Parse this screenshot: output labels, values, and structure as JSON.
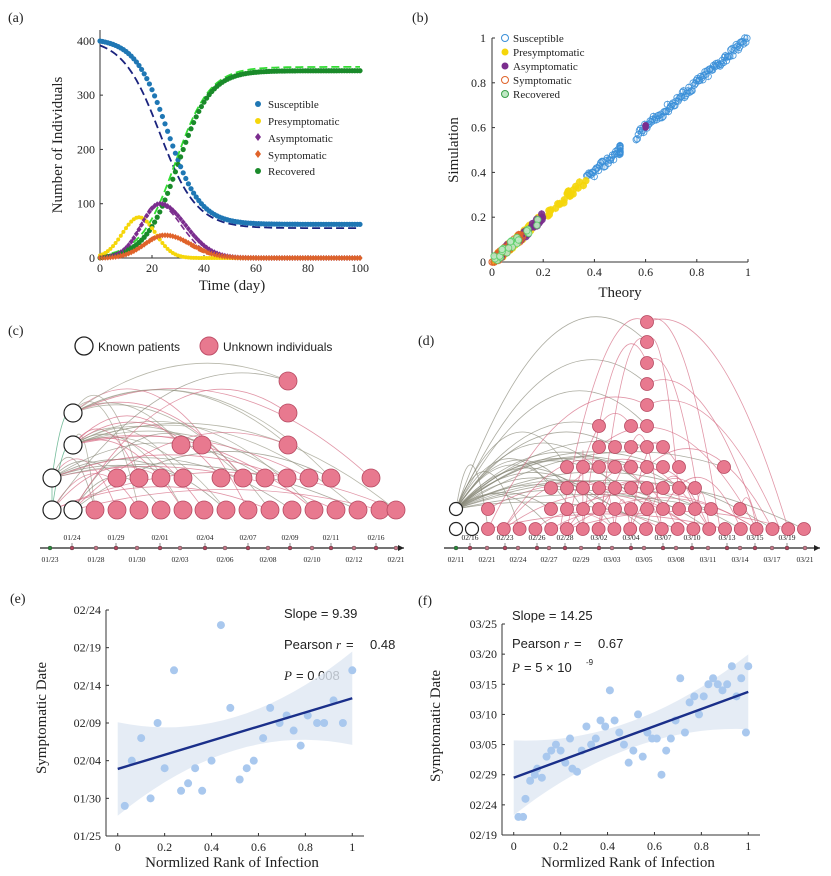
{
  "panel_labels": [
    "(a)",
    "(b)",
    "(c)",
    "(d)",
    "(e)",
    "(f)"
  ],
  "chart_data": [
    {
      "id": "a",
      "type": "line",
      "xlabel": "Time (day)",
      "ylabel": "Number of Individuals",
      "xlim": [
        0,
        100
      ],
      "ylim": [
        0,
        420
      ],
      "xticks": [
        0,
        20,
        40,
        60,
        80,
        100
      ],
      "yticks": [
        0,
        100,
        200,
        300,
        400
      ],
      "series": [
        {
          "name": "Susceptible",
          "color": "#1f77b4",
          "theory_color": "#1a237e",
          "final": 62,
          "start": 405
        },
        {
          "name": "Presymptomatic",
          "color": "#f5d60a",
          "peak": 75,
          "peak_day": 15
        },
        {
          "name": "Asymptomatic",
          "color": "#7b2d8e",
          "peak": 100,
          "peak_day": 23
        },
        {
          "name": "Symptomatic",
          "color": "#e0632a",
          "peak": 42,
          "peak_day": 25
        },
        {
          "name": "Recovered",
          "color": "#1a8a2a",
          "theory_color": "#33dd33",
          "final": 345,
          "theory_final": 352
        }
      ]
    },
    {
      "id": "b",
      "type": "scatter",
      "xlabel": "Theory",
      "ylabel": "Simulation",
      "xlim": [
        0,
        1
      ],
      "ylim": [
        0,
        1
      ],
      "xticks": [
        0,
        0.2,
        0.4,
        0.6,
        0.8,
        1
      ],
      "yticks": [
        0,
        0.2,
        0.4,
        0.6,
        0.8,
        1
      ],
      "series": [
        {
          "name": "Susceptible",
          "color": "#3a8fd8",
          "range": [
            0.37,
            1.0
          ]
        },
        {
          "name": "Presymptomatic",
          "color": "#f5d60a",
          "range": [
            0.0,
            0.37
          ]
        },
        {
          "name": "Asymptomatic",
          "color": "#7b2d8e",
          "range": [
            0.0,
            0.2
          ]
        },
        {
          "name": "Symptomatic",
          "color": "#e0632a",
          "range": [
            0.0,
            0.12
          ]
        },
        {
          "name": "Recovered",
          "color": "#5dcf6a",
          "range": [
            0.0,
            0.18
          ]
        }
      ]
    },
    {
      "id": "e",
      "type": "scatter",
      "xlabel": "Normlized Rank of Infection",
      "ylabel": "Symptomatic Date",
      "xlim": [
        -0.05,
        1.05
      ],
      "ylim": [
        0,
        30
      ],
      "xticks": [
        0,
        0.2,
        0.4,
        0.6,
        0.8,
        1
      ],
      "ytick_values": [
        0,
        5,
        10,
        15,
        20,
        25,
        30
      ],
      "ytick_labels": [
        "01/25",
        "01/30",
        "02/04",
        "02/09",
        "02/14",
        "02/19",
        "02/24"
      ],
      "stats": {
        "slope": "Slope = 9.39",
        "pearson_label": "Pearson",
        "pearson_value": "0.48",
        "p": "= 0.008"
      },
      "fit": {
        "intercept": 8.9,
        "slope": 9.39
      },
      "points": [
        [
          0.03,
          4
        ],
        [
          0.06,
          10
        ],
        [
          0.1,
          13
        ],
        [
          0.14,
          5
        ],
        [
          0.17,
          15
        ],
        [
          0.2,
          9
        ],
        [
          0.24,
          22
        ],
        [
          0.27,
          6
        ],
        [
          0.3,
          7
        ],
        [
          0.33,
          9
        ],
        [
          0.36,
          6
        ],
        [
          0.4,
          10
        ],
        [
          0.44,
          28
        ],
        [
          0.48,
          17
        ],
        [
          0.52,
          7.5
        ],
        [
          0.55,
          9
        ],
        [
          0.58,
          10
        ],
        [
          0.62,
          13
        ],
        [
          0.65,
          17
        ],
        [
          0.69,
          15
        ],
        [
          0.72,
          16
        ],
        [
          0.75,
          14
        ],
        [
          0.78,
          12
        ],
        [
          0.81,
          16
        ],
        [
          0.85,
          15
        ],
        [
          0.88,
          15
        ],
        [
          0.92,
          18
        ],
        [
          0.96,
          15
        ],
        [
          1.0,
          22
        ]
      ]
    },
    {
      "id": "f",
      "type": "scatter",
      "xlabel": "Normlized Rank of Infection",
      "ylabel": "Symptomatic Date",
      "xlim": [
        -0.05,
        1.05
      ],
      "ylim": [
        0,
        35
      ],
      "xticks": [
        0,
        0.2,
        0.4,
        0.6,
        0.8,
        1
      ],
      "ytick_values": [
        0,
        5,
        10,
        15,
        20,
        25,
        30,
        35
      ],
      "ytick_labels": [
        "02/19",
        "02/24",
        "02/29",
        "03/05",
        "03/10",
        "03/15",
        "03/20",
        "03/25"
      ],
      "stats": {
        "slope": "Slope = 14.25",
        "pearson_label": "Pearson",
        "pearson_value": "0.67",
        "p": "= 5 × 10",
        "p_exp": "-9"
      },
      "fit": {
        "intercept": 9.5,
        "slope": 14.25
      },
      "points": [
        [
          0.02,
          3
        ],
        [
          0.04,
          3
        ],
        [
          0.05,
          6
        ],
        [
          0.07,
          9
        ],
        [
          0.09,
          10
        ],
        [
          0.1,
          11
        ],
        [
          0.12,
          9.5
        ],
        [
          0.14,
          13
        ],
        [
          0.16,
          14
        ],
        [
          0.18,
          15
        ],
        [
          0.2,
          14
        ],
        [
          0.22,
          12
        ],
        [
          0.24,
          16
        ],
        [
          0.25,
          11
        ],
        [
          0.27,
          10.5
        ],
        [
          0.29,
          14
        ],
        [
          0.31,
          18
        ],
        [
          0.33,
          15
        ],
        [
          0.35,
          16
        ],
        [
          0.37,
          19
        ],
        [
          0.39,
          18
        ],
        [
          0.41,
          24
        ],
        [
          0.43,
          19
        ],
        [
          0.45,
          17
        ],
        [
          0.47,
          15
        ],
        [
          0.49,
          12
        ],
        [
          0.51,
          14
        ],
        [
          0.53,
          20
        ],
        [
          0.55,
          13
        ],
        [
          0.57,
          17
        ],
        [
          0.59,
          16
        ],
        [
          0.61,
          16
        ],
        [
          0.63,
          10
        ],
        [
          0.65,
          14
        ],
        [
          0.67,
          16
        ],
        [
          0.69,
          19
        ],
        [
          0.71,
          26
        ],
        [
          0.73,
          17
        ],
        [
          0.75,
          22
        ],
        [
          0.77,
          23
        ],
        [
          0.79,
          20
        ],
        [
          0.81,
          23
        ],
        [
          0.83,
          25
        ],
        [
          0.85,
          26
        ],
        [
          0.87,
          25
        ],
        [
          0.89,
          24
        ],
        [
          0.91,
          25
        ],
        [
          0.93,
          28
        ],
        [
          0.95,
          23
        ],
        [
          0.97,
          26
        ],
        [
          0.99,
          17
        ],
        [
          1.0,
          28
        ]
      ]
    }
  ],
  "network_c": {
    "legend": {
      "known": "Known patients",
      "unknown": "Unknown individuals"
    },
    "dates_top": [
      "01/24",
      "01/29",
      "02/01",
      "02/04",
      "02/07",
      "02/09",
      "02/11",
      "02/16"
    ],
    "dates_bottom": [
      "01/23",
      "01/28",
      "01/30",
      "02/03",
      "02/06",
      "02/08",
      "02/10",
      "02/12",
      "02/21"
    ],
    "node_fill": "#e8798f",
    "known_nodes": 6,
    "unknown_nodes": 32
  },
  "network_d": {
    "dates_top": [
      "02/16",
      "02/23",
      "02/26",
      "02/28",
      "03/02",
      "03/04",
      "03/07",
      "03/10",
      "03/13",
      "03/15",
      "03/19"
    ],
    "dates_bottom": [
      "02/11",
      "02/21",
      "02/24",
      "02/27",
      "02/29",
      "03/03",
      "03/05",
      "03/08",
      "03/11",
      "03/14",
      "03/17",
      "03/21"
    ],
    "node_fill": "#e8798f",
    "known_nodes": 3,
    "unknown_nodes": 70
  }
}
